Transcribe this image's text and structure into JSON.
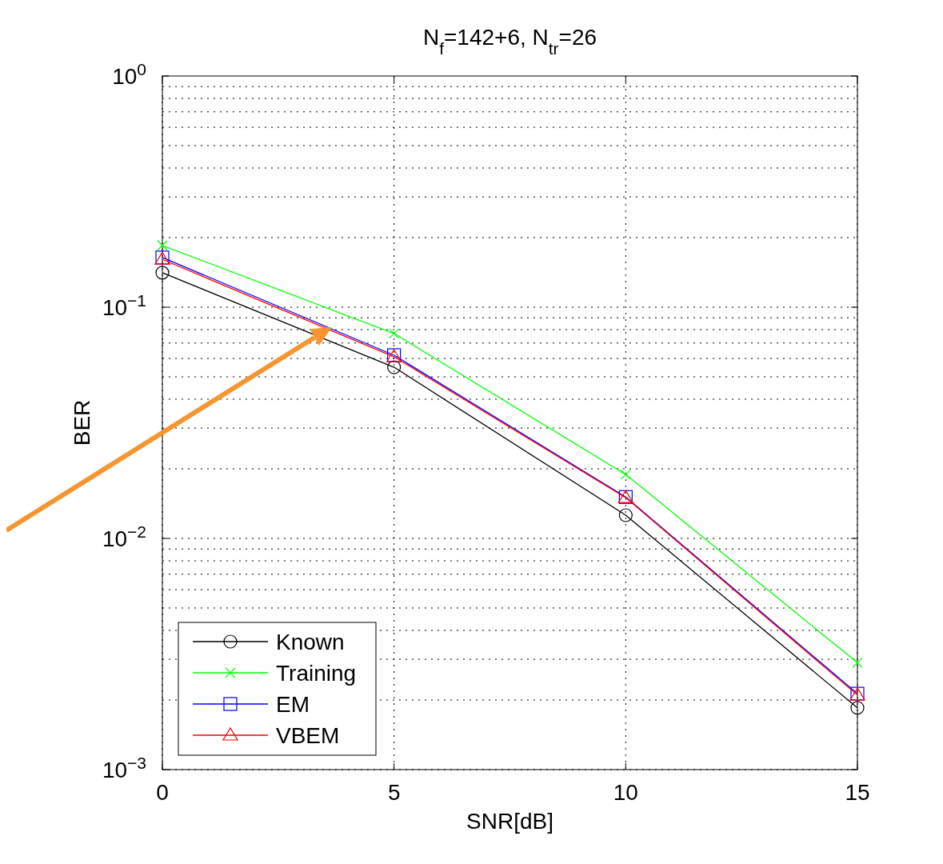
{
  "chart_data": {
    "type": "line",
    "title": "N$_{f}$=142+6, N$_{tr}$=26",
    "xlabel": "SNR[dB]",
    "ylabel": "BER",
    "x": [
      0,
      5,
      10,
      15
    ],
    "series": [
      {
        "name": "Known",
        "color": "#000000",
        "marker": "circle",
        "values": [
          0.141,
          0.055,
          0.0126,
          0.00185
        ]
      },
      {
        "name": "Training",
        "color": "#00ff00",
        "marker": "cross",
        "values": [
          0.185,
          0.077,
          0.0189,
          0.0029
        ]
      },
      {
        "name": "EM",
        "color": "#0000ff",
        "marker": "square",
        "values": [
          0.164,
          0.062,
          0.0151,
          0.00213
        ]
      },
      {
        "name": "VBEM",
        "color": "#ff0000",
        "marker": "triangle",
        "values": [
          0.161,
          0.061,
          0.015,
          0.0021
        ]
      }
    ],
    "xlim": [
      0,
      15
    ],
    "xticks": [
      0,
      5,
      10,
      15
    ],
    "ylim": [
      0.001,
      1
    ],
    "yticks": [
      {
        "value": 0.001,
        "label": "10$^{−3}$"
      },
      {
        "value": 0.01,
        "label": "10$^{−2}$"
      },
      {
        "value": 0.1,
        "label": "10$^{−1}$"
      },
      {
        "value": 1,
        "label": "10$^{0}$"
      }
    ],
    "log": "y",
    "grid": true,
    "legend": "bottom left",
    "line_style": "solid"
  }
}
